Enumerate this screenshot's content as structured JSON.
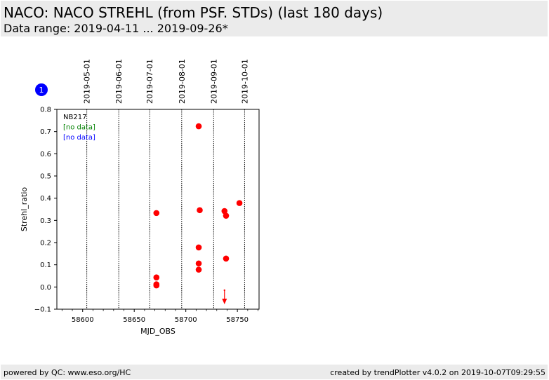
{
  "header": {
    "title": "NACO: NACO STREHL (from PSF. STDs) (last 180 days)",
    "subtitle": "Data range: 2019-04-11 ... 2019-09-26*"
  },
  "footer": {
    "left": "powered by QC: www.eso.org/HC",
    "right": "created by trendPlotter v4.0.2 on 2019-10-07T09:29:55"
  },
  "colors": {
    "points": "#ff0000",
    "badge": "#0000ff",
    "legend_green": "#008000",
    "legend_blue": "#0000ff"
  },
  "chart_data": {
    "type": "scatter",
    "badge": "1",
    "xlabel": "MJD_OBS",
    "ylabel": "Strehl_ratio",
    "xlim": [
      58575,
      58771
    ],
    "ylim": [
      -0.1,
      0.8
    ],
    "x_ticks": [
      58600,
      58650,
      58700,
      58750
    ],
    "x_tick_labels": [
      "58600",
      "58650",
      "58700",
      "58750"
    ],
    "y_ticks": [
      -0.1,
      0.0,
      0.1,
      0.2,
      0.3,
      0.4,
      0.5,
      0.6,
      0.7,
      0.8
    ],
    "y_tick_labels": [
      "−0.1",
      "0.0",
      "0.1",
      "0.2",
      "0.3",
      "0.4",
      "0.5",
      "0.6",
      "0.7",
      "0.8"
    ],
    "date_lines": [
      {
        "label": "2019-05-01",
        "mjd": 58604
      },
      {
        "label": "2019-06-01",
        "mjd": 58635
      },
      {
        "label": "2019-07-01",
        "mjd": 58665
      },
      {
        "label": "2019-08-01",
        "mjd": 58696
      },
      {
        "label": "2019-09-01",
        "mjd": 58727
      },
      {
        "label": "2019-10-01",
        "mjd": 58757
      }
    ],
    "legend": [
      "NB217",
      "[no data]",
      "[no data]"
    ],
    "series": [
      {
        "points": [
          {
            "x": 58671.5,
            "y": 0.333
          },
          {
            "x": 58671.5,
            "y": 0.043
          },
          {
            "x": 58671.5,
            "y": 0.012
          },
          {
            "x": 58671.5,
            "y": 0.007
          },
          {
            "x": 58712.5,
            "y": 0.724
          },
          {
            "x": 58713.5,
            "y": 0.346
          },
          {
            "x": 58712.5,
            "y": 0.178
          },
          {
            "x": 58712.5,
            "y": 0.106
          },
          {
            "x": 58712.5,
            "y": 0.078
          },
          {
            "x": 58737.5,
            "y": 0.342
          },
          {
            "x": 58739.0,
            "y": 0.321
          },
          {
            "x": 58739.0,
            "y": 0.128
          },
          {
            "x": 58752.0,
            "y": 0.378
          }
        ]
      }
    ],
    "below_range_markers": [
      {
        "x": 58737.5
      }
    ]
  }
}
